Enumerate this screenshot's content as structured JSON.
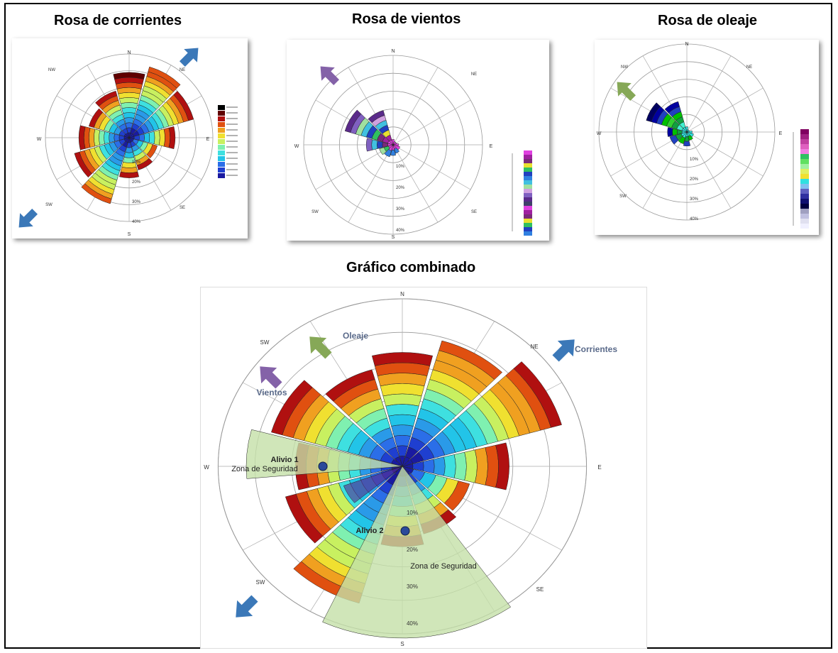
{
  "titles": {
    "corrientes": "Rosa de corrientes",
    "vientos": "Rosa de vientos",
    "oleaje": "Rosa de oleaje",
    "combinado": "Gráfico combinado"
  },
  "chart_data": [
    {
      "type": "polar-bar",
      "title": "Rosa de corrientes",
      "dominant_direction": [
        "NE",
        "SW"
      ],
      "direction_labels": [
        "N",
        "NE",
        "E",
        "SE",
        "S",
        "SW",
        "W",
        "NW"
      ],
      "grid": true,
      "legend_placement": "right"
    },
    {
      "type": "polar-bar",
      "title": "Rosa de vientos",
      "dominant_direction": "NW",
      "direction_labels": [
        "N",
        "NE",
        "E",
        "SE",
        "S",
        "SW",
        "W",
        "NW"
      ],
      "grid": true,
      "legend_placement": "bottom-right"
    },
    {
      "type": "polar-bar",
      "title": "Rosa de oleaje",
      "dominant_direction": "NW",
      "direction_labels": [
        "N",
        "NE",
        "E",
        "SE",
        "S",
        "SW",
        "W",
        "NW"
      ],
      "grid": true,
      "legend_placement": "right"
    },
    {
      "type": "polar-bar",
      "title": "Gráfico combinado",
      "direction_labels": [
        "N",
        "NE",
        "E",
        "SE",
        "S",
        "SW",
        "W",
        "SW"
      ],
      "radial_ticks": [
        "10%",
        "20%",
        "30%",
        "40%"
      ],
      "radial_range": [
        0,
        40
      ],
      "grid": true,
      "annotations": {
        "oleaje": "Oleaje",
        "vientos": "Vientos",
        "corrientes": "Corrientes",
        "alivio1": "Alivio 1",
        "alivio2": "Alivio 2",
        "zona": "Zona de Seguridad"
      }
    }
  ],
  "colors": {
    "current_arrow": "#3b78b8",
    "wind_arrow": "#8462a8",
    "wave_arrow": "#86a857",
    "safety_zone": "#c4e0a8"
  }
}
